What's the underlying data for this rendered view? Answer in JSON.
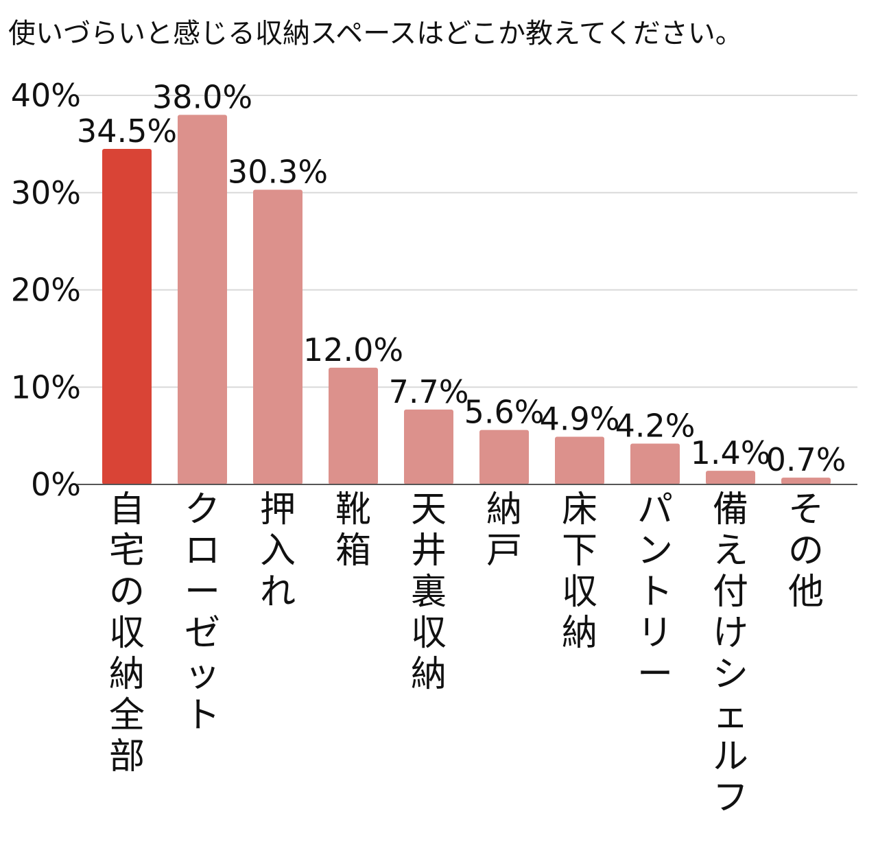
{
  "chart_data": {
    "type": "bar",
    "title": "使いづらいと感じる収納スペースはどこか教えてください。",
    "xlabel": "",
    "ylabel": "",
    "ylim": [
      0,
      40
    ],
    "yticks": [
      0,
      10,
      20,
      30,
      40
    ],
    "ytick_labels": [
      "0%",
      "10%",
      "20%",
      "30%",
      "40%"
    ],
    "grid": true,
    "legend": "none",
    "categories": [
      "自宅の収納全部",
      "クローゼット",
      "押入れ",
      "靴箱",
      "天井裏収納",
      "納戸",
      "床下収納",
      "パントリー",
      "備え付けシェルフ",
      "その他"
    ],
    "values": [
      34.5,
      38.0,
      30.3,
      12.0,
      7.7,
      5.6,
      4.9,
      4.2,
      1.4,
      0.7
    ],
    "value_labels": [
      "34.5%",
      "38.0%",
      "30.3%",
      "12.0%",
      "7.7%",
      "5.6%",
      "4.9%",
      "4.2%",
      "1.4%",
      "0.7%"
    ],
    "highlight_index": 0,
    "colors": {
      "highlight": "#d94436",
      "bar": "#dc918c",
      "grid": "#d9d9d9",
      "axis": "#555555",
      "text": "#111111"
    }
  }
}
